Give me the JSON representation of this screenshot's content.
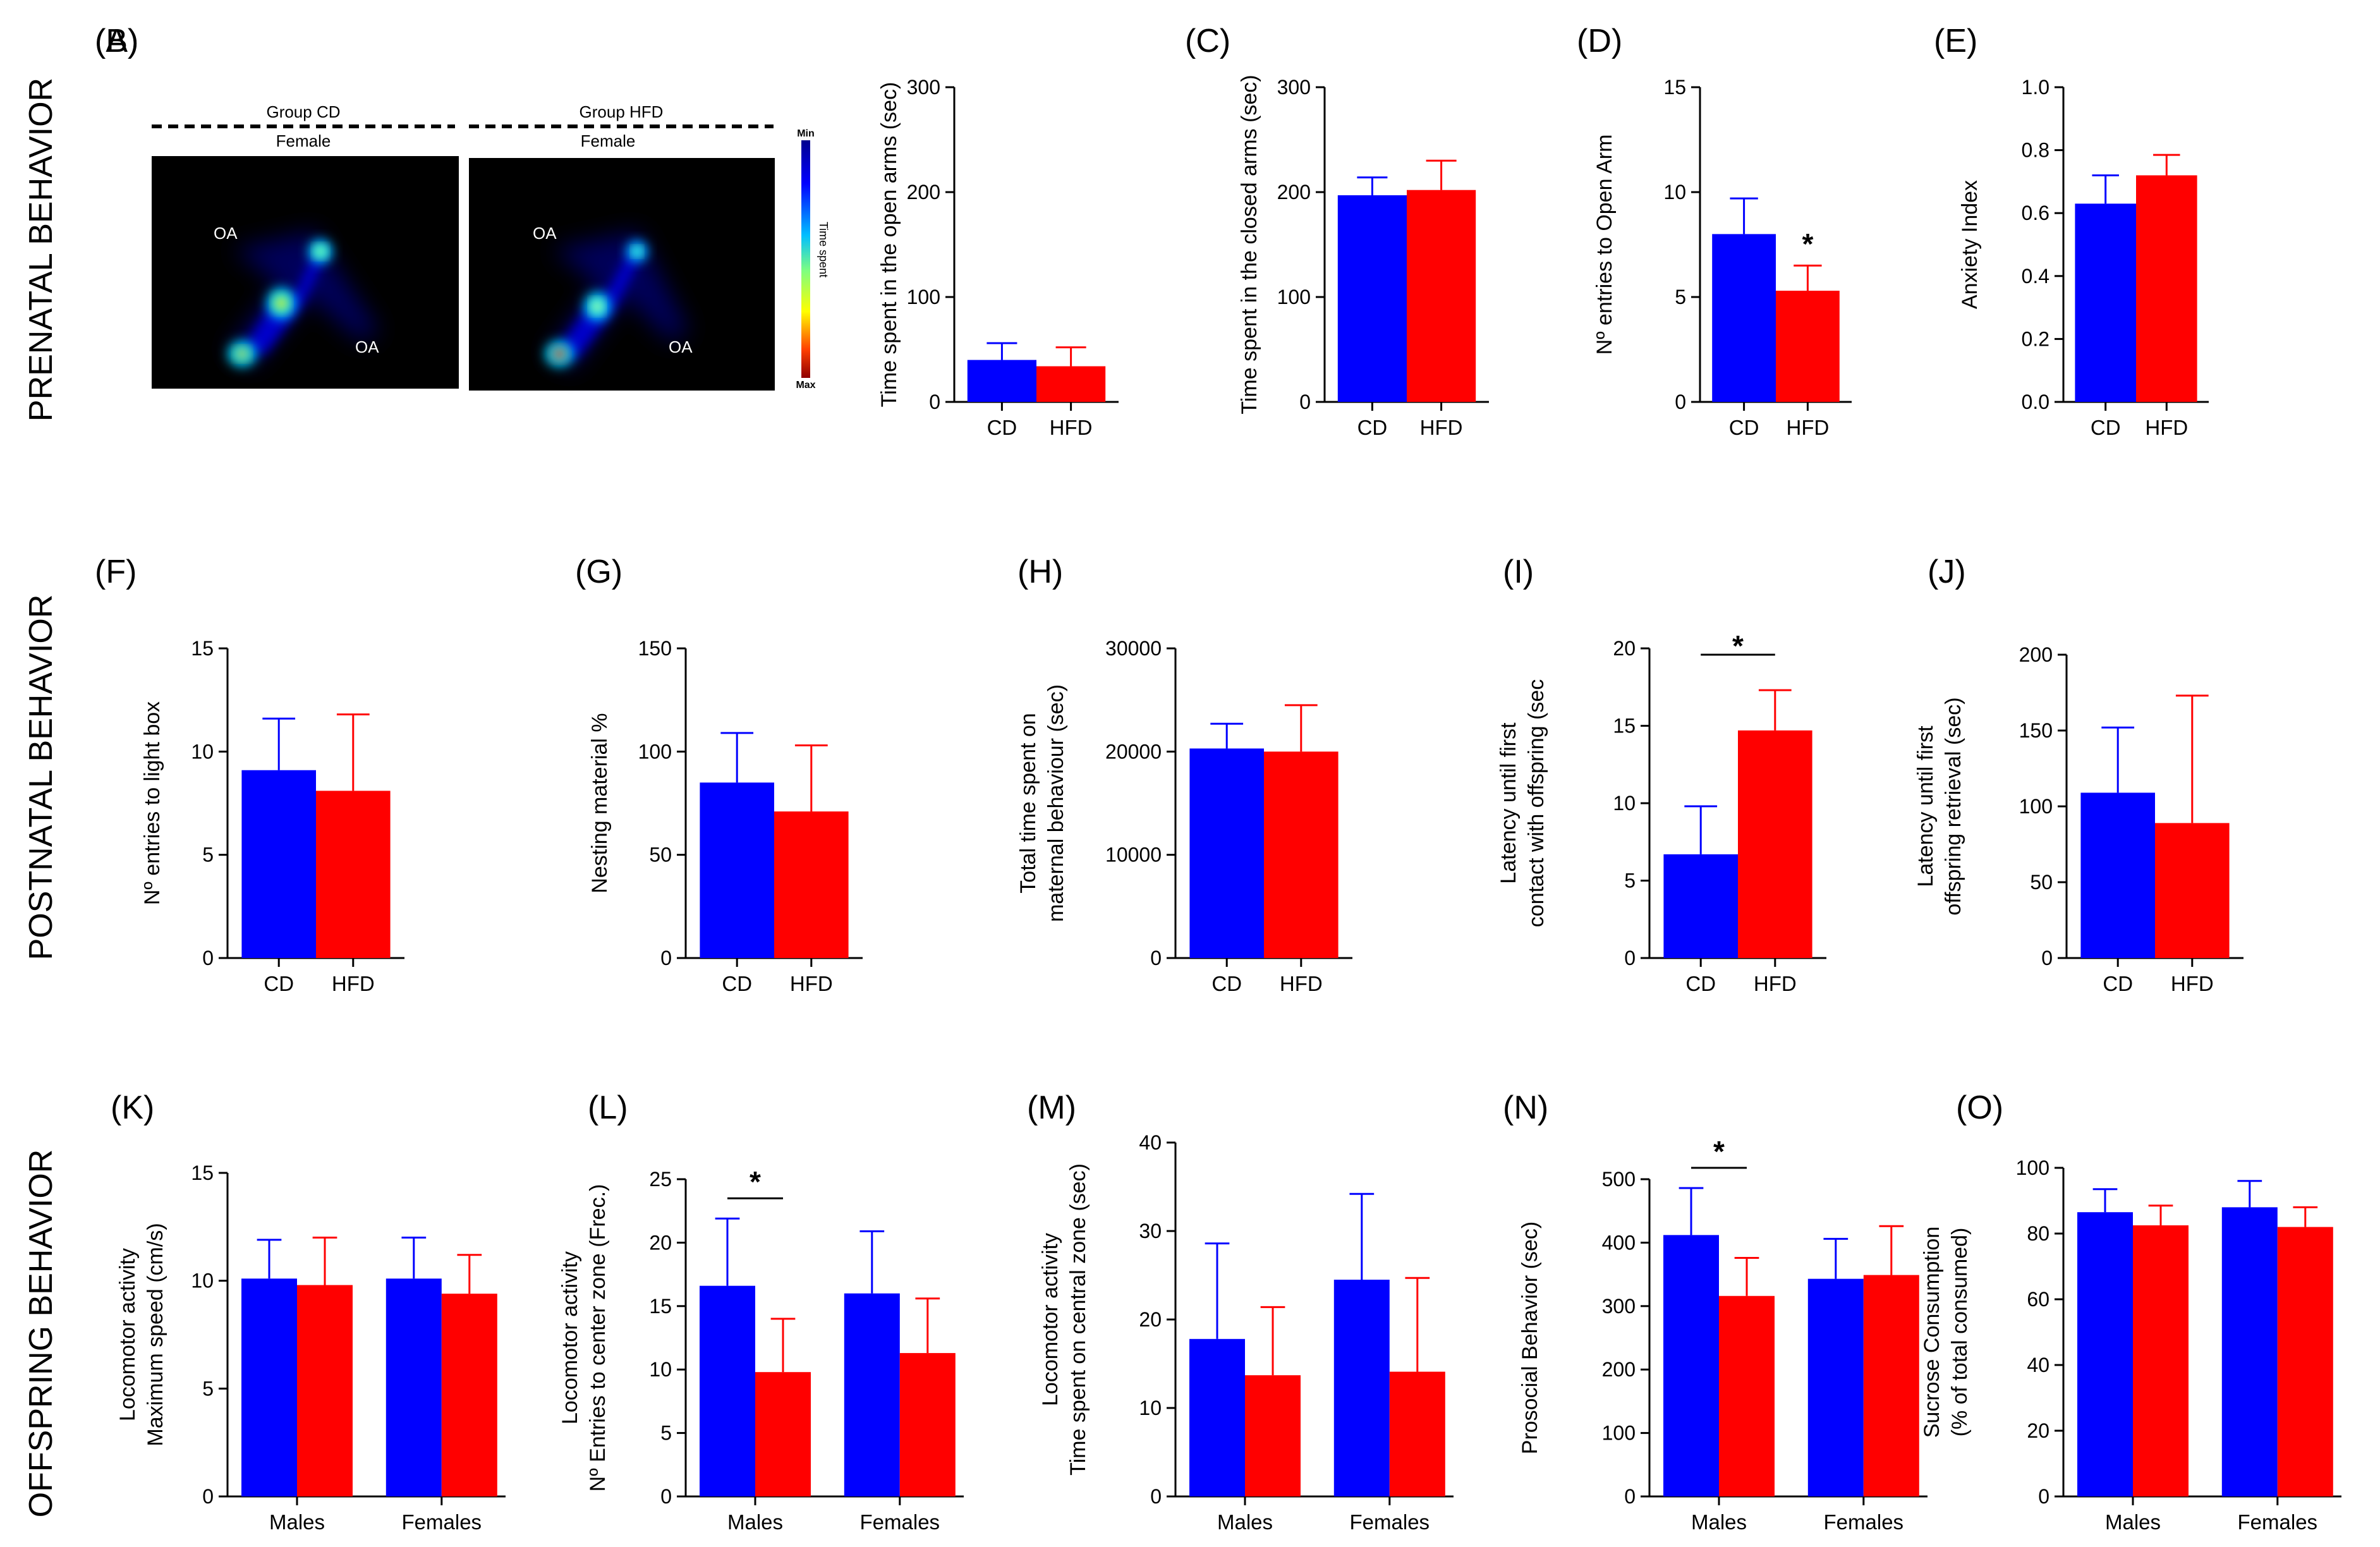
{
  "colors": {
    "cd": "#0000ff",
    "hfd": "#ff0000"
  },
  "rows": [
    {
      "label": "PRENATAL BEHAVIOR"
    },
    {
      "label": "POSTNATAL BEHAVIOR"
    },
    {
      "label": "OFFSPRING BEHAVIOR"
    }
  ],
  "heatmap": {
    "panel_label": "(A)",
    "groups": [
      {
        "group_label": "Group CD",
        "sex_label": "Female",
        "arm_labels": [
          "OA",
          "OA"
        ]
      },
      {
        "group_label": "Group HFD",
        "sex_label": "Female",
        "arm_labels": [
          "OA",
          "OA"
        ]
      }
    ],
    "scale": {
      "min_label": "Min",
      "max_label": "Max",
      "title": "Time spent"
    }
  },
  "chart_data": [
    {
      "id": "B",
      "panel_label": "(B)",
      "type": "bar",
      "ylabel": "Time spent in the open arms (sec)",
      "categories": [
        "CD",
        "HFD"
      ],
      "values": [
        40,
        34
      ],
      "errors": [
        16,
        18
      ],
      "ylim": [
        0,
        300
      ],
      "yticks": [
        0,
        100,
        200,
        300
      ],
      "yticklabels": [
        "0",
        "100",
        "200",
        "300"
      ]
    },
    {
      "id": "C",
      "panel_label": "(C)",
      "type": "bar",
      "ylabel": "Time spent in the closed arms (sec)",
      "categories": [
        "CD",
        "HFD"
      ],
      "values": [
        197,
        202
      ],
      "errors": [
        17,
        28
      ],
      "ylim": [
        0,
        300
      ],
      "yticks": [
        0,
        100,
        200,
        300
      ],
      "yticklabels": [
        "0",
        "100",
        "200",
        "300"
      ]
    },
    {
      "id": "D",
      "panel_label": "(D)",
      "type": "bar",
      "ylabel": "Nº entries to Open Arm",
      "categories": [
        "CD",
        "HFD"
      ],
      "values": [
        8,
        5.3
      ],
      "errors": [
        1.7,
        1.2
      ],
      "ylim": [
        0,
        15
      ],
      "yticks": [
        0,
        5,
        10,
        15
      ],
      "yticklabels": [
        "0",
        "5",
        "10",
        "15"
      ],
      "stars": [
        {
          "text": "*",
          "on": "hfd"
        }
      ]
    },
    {
      "id": "E",
      "panel_label": "(E)",
      "type": "bar",
      "ylabel": "Anxiety Index",
      "categories": [
        "CD",
        "HFD"
      ],
      "values": [
        0.63,
        0.72
      ],
      "errors": [
        0.09,
        0.065
      ],
      "ylim": [
        0,
        1
      ],
      "yticks": [
        0,
        0.2,
        0.4,
        0.6,
        0.8,
        1
      ],
      "yticklabels": [
        "0.0",
        "0.2",
        "0.4",
        "0.6",
        "0.8",
        "1.0"
      ]
    },
    {
      "id": "F",
      "panel_label": "(F)",
      "type": "bar",
      "ylabel": "Nº entries to light box",
      "categories": [
        "CD",
        "HFD"
      ],
      "values": [
        9.1,
        8.1
      ],
      "errors": [
        2.5,
        3.7
      ],
      "ylim": [
        0,
        15
      ],
      "yticks": [
        0,
        5,
        10,
        15
      ],
      "yticklabels": [
        "0",
        "5",
        "10",
        "15"
      ]
    },
    {
      "id": "G",
      "panel_label": "(G)",
      "type": "bar",
      "ylabel": "Nesting material %",
      "categories": [
        "CD",
        "HFD"
      ],
      "values": [
        85,
        71
      ],
      "errors": [
        24,
        32
      ],
      "ylim": [
        0,
        150
      ],
      "yticks": [
        0,
        50,
        100,
        150
      ],
      "yticklabels": [
        "0",
        "50",
        "100",
        "150"
      ]
    },
    {
      "id": "H",
      "panel_label": "(H)",
      "type": "bar",
      "ylabel": "Total time spent on|maternal behaviour (sec)",
      "categories": [
        "CD",
        "HFD"
      ],
      "values": [
        20300,
        20000
      ],
      "errors": [
        2400,
        4500
      ],
      "ylim": [
        0,
        30000
      ],
      "yticks": [
        0,
        10000,
        20000,
        30000
      ],
      "yticklabels": [
        "0",
        "10000",
        "20000",
        "30000"
      ]
    },
    {
      "id": "I",
      "panel_label": "(I)",
      "type": "bar",
      "ylabel": "Latency until first|contact with offspring (sec",
      "categories": [
        "CD",
        "HFD"
      ],
      "values": [
        6.7,
        14.7
      ],
      "errors": [
        3.1,
        2.6
      ],
      "ylim": [
        0,
        20
      ],
      "yticks": [
        0,
        5,
        10,
        15,
        20
      ],
      "yticklabels": [
        "0",
        "5",
        "10",
        "15",
        "20"
      ],
      "stars": [
        {
          "text": "*",
          "on": "bracket"
        }
      ]
    },
    {
      "id": "J",
      "panel_label": "(J)",
      "type": "bar",
      "ylabel": "Latency until first|offspring retrieval (sec)",
      "categories": [
        "CD",
        "HFD"
      ],
      "values": [
        109,
        89
      ],
      "errors": [
        43,
        84
      ],
      "ylim": [
        0,
        200
      ],
      "yticks": [
        0,
        50,
        100,
        150,
        200
      ],
      "yticklabels": [
        "0",
        "50",
        "100",
        "150",
        "200"
      ]
    },
    {
      "id": "K",
      "panel_label": "(K)",
      "type": "grouped_bar",
      "ylabel": "Locomotor activity|Maximum speed (cm/s)",
      "categories": [
        "Males",
        "Females"
      ],
      "series": [
        {
          "name": "CD",
          "values": [
            10.1,
            10.1
          ],
          "errors": [
            1.8,
            1.9
          ]
        },
        {
          "name": "HFD",
          "values": [
            9.8,
            9.4
          ],
          "errors": [
            2.2,
            1.8
          ]
        }
      ],
      "ylim": [
        0,
        15
      ],
      "yticks": [
        0,
        5,
        10,
        15
      ],
      "yticklabels": [
        "0",
        "5",
        "10",
        "15"
      ]
    },
    {
      "id": "L",
      "panel_label": "(L)",
      "type": "grouped_bar",
      "ylabel": "Locomotor activity|Nº Entries to center zone (Frec.)",
      "categories": [
        "Males",
        "Females"
      ],
      "series": [
        {
          "name": "CD",
          "values": [
            16.6,
            16
          ],
          "errors": [
            5.3,
            4.9
          ]
        },
        {
          "name": "HFD",
          "values": [
            9.8,
            11.3
          ],
          "errors": [
            4.2,
            4.3
          ]
        }
      ],
      "ylim": [
        0,
        25
      ],
      "yticks": [
        0,
        5,
        10,
        15,
        20,
        25
      ],
      "yticklabels": [
        "0",
        "5",
        "10",
        "15",
        "20",
        "25"
      ],
      "stars": [
        {
          "text": "*",
          "group": 0
        }
      ]
    },
    {
      "id": "M",
      "panel_label": "(M)",
      "type": "grouped_bar",
      "ylabel": "Locomotor activity|Time spent on central zone (sec)",
      "categories": [
        "Males",
        "Females"
      ],
      "series": [
        {
          "name": "CD",
          "values": [
            17.8,
            24.5
          ],
          "errors": [
            10.8,
            9.7
          ]
        },
        {
          "name": "HFD",
          "values": [
            13.7,
            14.1
          ],
          "errors": [
            7.7,
            10.6
          ]
        }
      ],
      "ylim": [
        0,
        40
      ],
      "yticks": [
        0,
        10,
        20,
        30,
        40
      ],
      "yticklabels": [
        "0",
        "10",
        "20",
        "30",
        "40"
      ]
    },
    {
      "id": "N",
      "panel_label": "(N)",
      "type": "grouped_bar",
      "ylabel": "Prosocial Behavior (sec)",
      "categories": [
        "Males",
        "Females"
      ],
      "series": [
        {
          "name": "CD",
          "values": [
            412,
            343
          ],
          "errors": [
            74,
            63
          ]
        },
        {
          "name": "HFD",
          "values": [
            316,
            349
          ],
          "errors": [
            60,
            77
          ]
        }
      ],
      "ylim": [
        0,
        500
      ],
      "yticks": [
        0,
        100,
        200,
        300,
        400,
        500
      ],
      "yticklabels": [
        "0",
        "100",
        "200",
        "300",
        "400",
        "500"
      ],
      "stars": [
        {
          "text": "*",
          "group": 0
        }
      ]
    },
    {
      "id": "O",
      "panel_label": "(O)",
      "type": "grouped_bar",
      "ylabel": "Sucrose Consumption|(% of total consumed)",
      "categories": [
        "Males",
        "Females"
      ],
      "series": [
        {
          "name": "CD",
          "values": [
            86.5,
            88
          ],
          "errors": [
            7,
            8
          ]
        },
        {
          "name": "HFD",
          "values": [
            82.5,
            82
          ],
          "errors": [
            6,
            6
          ]
        }
      ],
      "ylim": [
        0,
        100
      ],
      "yticks": [
        0,
        20,
        40,
        60,
        80,
        100
      ],
      "yticklabels": [
        "0",
        "20",
        "40",
        "60",
        "80",
        "100"
      ]
    }
  ]
}
